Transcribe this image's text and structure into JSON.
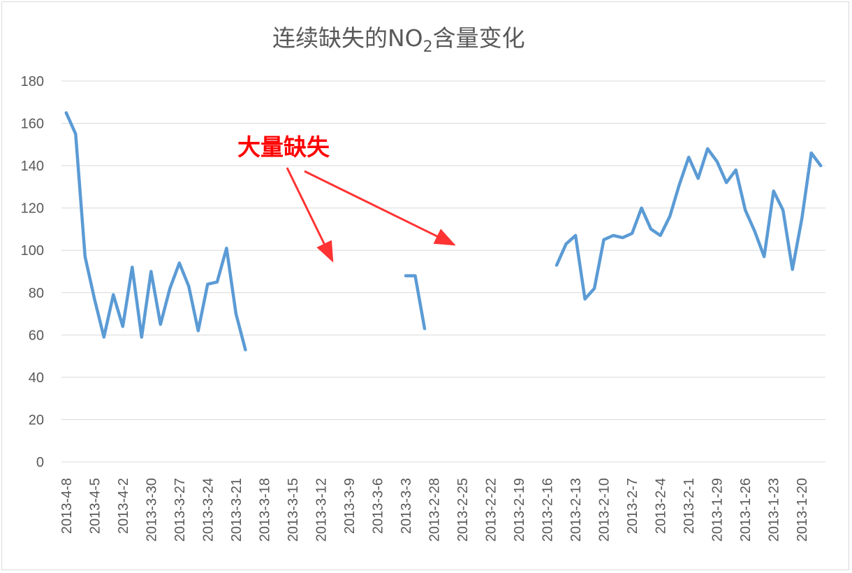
{
  "chart_data": {
    "type": "line",
    "title": "连续缺失的NO",
    "title_subscript": "2",
    "title_suffix": "含量变化",
    "ylim": [
      0,
      180
    ],
    "yticks": [
      0,
      20,
      40,
      60,
      80,
      100,
      120,
      140,
      160,
      180
    ],
    "grid": true,
    "x_order": "descending",
    "x_tick_labels": [
      "2013-4-8",
      "2013-4-5",
      "2013-4-2",
      "2013-3-30",
      "2013-3-27",
      "2013-3-24",
      "2013-3-21",
      "2013-3-18",
      "2013-3-15",
      "2013-3-12",
      "2013-3-9",
      "2013-3-6",
      "2013-3-3",
      "2013-2-28",
      "2013-2-25",
      "2013-2-22",
      "2013-2-19",
      "2013-2-16",
      "2013-2-13",
      "2013-2-10",
      "2013-2-7",
      "2013-2-4",
      "2013-2-1",
      "2013-1-29",
      "2013-1-26",
      "2013-1-23",
      "2013-1-20"
    ],
    "series": [
      {
        "color": "#5b9bd5",
        "points": [
          [
            "2013-4-8",
            165
          ],
          [
            "2013-4-7",
            155
          ],
          [
            "2013-4-6",
            97
          ],
          [
            "2013-4-5",
            77
          ],
          [
            "2013-4-4",
            59
          ],
          [
            "2013-4-3",
            79
          ],
          [
            "2013-4-2",
            64
          ],
          [
            "2013-4-1",
            92
          ],
          [
            "2013-3-31",
            59
          ],
          [
            "2013-3-30",
            90
          ],
          [
            "2013-3-29",
            65
          ],
          [
            "2013-3-28",
            82
          ],
          [
            "2013-3-27",
            94
          ],
          [
            "2013-3-26",
            83
          ],
          [
            "2013-3-25",
            62
          ],
          [
            "2013-3-24",
            84
          ],
          [
            "2013-3-23",
            85
          ],
          [
            "2013-3-22",
            101
          ],
          [
            "2013-3-21",
            70
          ],
          [
            "2013-3-20",
            53
          ],
          [
            "2013-3-19",
            null
          ],
          [
            "2013-3-18",
            null
          ],
          [
            "2013-3-17",
            null
          ],
          [
            "2013-3-16",
            null
          ],
          [
            "2013-3-15",
            null
          ],
          [
            "2013-3-14",
            null
          ],
          [
            "2013-3-13",
            null
          ],
          [
            "2013-3-12",
            null
          ],
          [
            "2013-3-11",
            null
          ],
          [
            "2013-3-10",
            null
          ],
          [
            "2013-3-9",
            null
          ],
          [
            "2013-3-8",
            null
          ],
          [
            "2013-3-7",
            null
          ],
          [
            "2013-3-6",
            null
          ],
          [
            "2013-3-5",
            null
          ],
          [
            "2013-3-4",
            null
          ],
          [
            "2013-3-3",
            88
          ],
          [
            "2013-3-2",
            88
          ],
          [
            "2013-3-1",
            63
          ],
          [
            "2013-2-28",
            null
          ],
          [
            "2013-2-27",
            null
          ],
          [
            "2013-2-26",
            null
          ],
          [
            "2013-2-25",
            null
          ],
          [
            "2013-2-24",
            null
          ],
          [
            "2013-2-23",
            null
          ],
          [
            "2013-2-22",
            null
          ],
          [
            "2013-2-21",
            null
          ],
          [
            "2013-2-20",
            null
          ],
          [
            "2013-2-19",
            null
          ],
          [
            "2013-2-18",
            null
          ],
          [
            "2013-2-17",
            null
          ],
          [
            "2013-2-16",
            null
          ],
          [
            "2013-2-15",
            93
          ],
          [
            "2013-2-14",
            103
          ],
          [
            "2013-2-13",
            107
          ],
          [
            "2013-2-12",
            77
          ],
          [
            "2013-2-11",
            82
          ],
          [
            "2013-2-10",
            105
          ],
          [
            "2013-2-9",
            107
          ],
          [
            "2013-2-8",
            106
          ],
          [
            "2013-2-7",
            108
          ],
          [
            "2013-2-6",
            120
          ],
          [
            "2013-2-5",
            110
          ],
          [
            "2013-2-4",
            107
          ],
          [
            "2013-2-3",
            116
          ],
          [
            "2013-2-2",
            131
          ],
          [
            "2013-2-1",
            144
          ],
          [
            "2013-1-31",
            134
          ],
          [
            "2013-1-30",
            148
          ],
          [
            "2013-1-29",
            142
          ],
          [
            "2013-1-28",
            132
          ],
          [
            "2013-1-27",
            138
          ],
          [
            "2013-1-26",
            119
          ],
          [
            "2013-1-25",
            109
          ],
          [
            "2013-1-24",
            97
          ],
          [
            "2013-1-23",
            128
          ],
          [
            "2013-1-22",
            119
          ],
          [
            "2013-1-21",
            91
          ],
          [
            "2013-1-20",
            115
          ],
          [
            "2013-1-19",
            146
          ],
          [
            "2013-1-18",
            140
          ]
        ]
      }
    ],
    "annotations": [
      {
        "text": "大量缺失",
        "color": "#ff0000",
        "arrows": [
          "2013-3-11",
          "2013-2-24"
        ]
      }
    ]
  }
}
